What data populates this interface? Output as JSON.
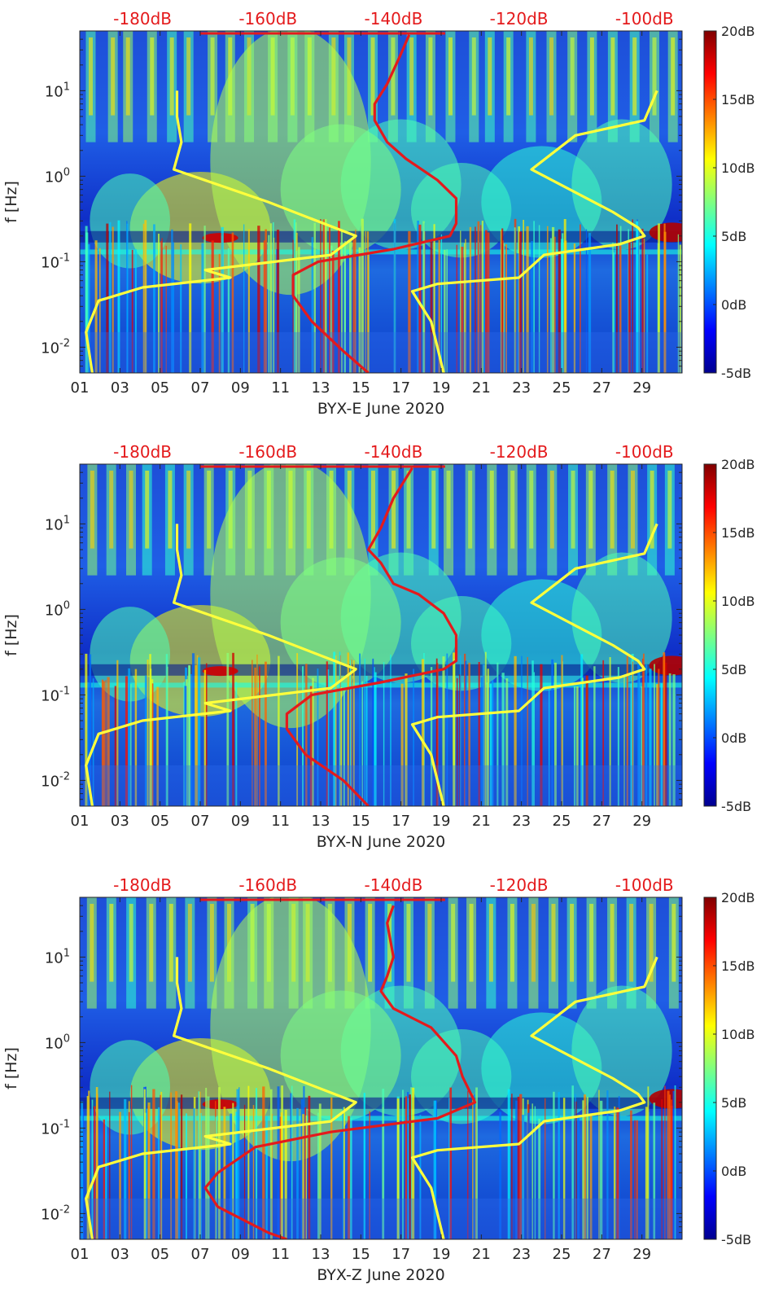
{
  "chart_data": [
    {
      "type": "heatmap",
      "title": "BYX-E June 2020",
      "xlabel": "BYX-E June 2020",
      "ylabel": "f [Hz]",
      "x_ticks": [
        "01",
        "03",
        "05",
        "07",
        "09",
        "11",
        "13",
        "15",
        "17",
        "19",
        "21",
        "23",
        "25",
        "27",
        "29"
      ],
      "x_range_days": [
        1,
        31
      ],
      "y_ticks": [
        "10^-2",
        "10^-1",
        "10^0",
        "10^1"
      ],
      "y_range_hz": [
        0.005,
        50
      ],
      "y_scale": "log",
      "colorbar_ticks": [
        "20dB",
        "15dB",
        "10dB",
        "5dB",
        "0dB",
        "-5dB"
      ],
      "color_range_db": [
        -5,
        20
      ],
      "top_scale_labels": [
        "-180dB",
        "-160dB",
        "-140dB",
        "-120dB",
        "-100dB"
      ],
      "top_scale_range_db": [
        -190,
        -94
      ],
      "series": [
        {
          "name": "yellow-noise-model",
          "color": "#ffff3c",
          "points": [
            [
              -174.5,
              10
            ],
            [
              -174.5,
              5
            ],
            [
              -173.8,
              2.5
            ],
            [
              -175,
              1.2
            ],
            [
              -160,
              0.5
            ],
            [
              -146,
              0.2
            ],
            [
              -150,
              0.12
            ],
            [
              -170,
              0.08
            ],
            [
              -166,
              0.065
            ],
            [
              -180,
              0.05
            ],
            [
              -187,
              0.035
            ],
            [
              -189,
              0.015
            ],
            [
              -188,
              0.005
            ]
          ]
        },
        {
          "name": "yellow-noise-model-right",
          "color": "#ffff3c",
          "points": [
            [
              -98,
              10
            ],
            [
              -100,
              4.5
            ],
            [
              -111,
              3
            ],
            [
              -118,
              1.2
            ],
            [
              -105,
              0.38
            ],
            [
              -101,
              0.25
            ],
            [
              -100,
              0.2
            ],
            [
              -104,
              0.16
            ],
            [
              -116,
              0.12
            ],
            [
              -120,
              0.065
            ],
            [
              -133,
              0.055
            ],
            [
              -137,
              0.045
            ],
            [
              -134,
              0.02
            ],
            [
              -132,
              0.005
            ]
          ]
        },
        {
          "name": "red-psd",
          "color": "#e41a1c",
          "points": [
            [
              -137.5,
              45
            ],
            [
              -139,
              25
            ],
            [
              -141,
              12
            ],
            [
              -143,
              7
            ],
            [
              -143,
              4.5
            ],
            [
              -141,
              2.5
            ],
            [
              -138,
              1.6
            ],
            [
              -133,
              0.9
            ],
            [
              -130,
              0.55
            ],
            [
              -130,
              0.28
            ],
            [
              -131,
              0.2
            ],
            [
              -140,
              0.14
            ],
            [
              -152,
              0.1
            ],
            [
              -156,
              0.07
            ],
            [
              -156,
              0.04
            ],
            [
              -153,
              0.02
            ],
            [
              -148,
              0.009
            ],
            [
              -144,
              0.005
            ]
          ]
        }
      ]
    },
    {
      "type": "heatmap",
      "title": "BYX-N June 2020",
      "xlabel": "BYX-N June 2020",
      "ylabel": "f [Hz]",
      "x_ticks": [
        "01",
        "03",
        "05",
        "07",
        "09",
        "11",
        "13",
        "15",
        "17",
        "19",
        "21",
        "23",
        "25",
        "27",
        "29"
      ],
      "x_range_days": [
        1,
        31
      ],
      "y_ticks": [
        "10^-2",
        "10^-1",
        "10^0",
        "10^1"
      ],
      "y_range_hz": [
        0.005,
        50
      ],
      "y_scale": "log",
      "colorbar_ticks": [
        "20dB",
        "15dB",
        "10dB",
        "5dB",
        "0dB",
        "-5dB"
      ],
      "color_range_db": [
        -5,
        20
      ],
      "top_scale_labels": [
        "-180dB",
        "-160dB",
        "-140dB",
        "-120dB",
        "-100dB"
      ],
      "top_scale_range_db": [
        -190,
        -94
      ],
      "series": [
        {
          "name": "yellow-noise-model",
          "color": "#ffff3c",
          "points": [
            [
              -174.5,
              10
            ],
            [
              -174.5,
              5
            ],
            [
              -173.8,
              2.5
            ],
            [
              -175,
              1.2
            ],
            [
              -160,
              0.5
            ],
            [
              -146,
              0.2
            ],
            [
              -150,
              0.12
            ],
            [
              -170,
              0.08
            ],
            [
              -166,
              0.065
            ],
            [
              -180,
              0.05
            ],
            [
              -187,
              0.035
            ],
            [
              -189,
              0.015
            ],
            [
              -188,
              0.005
            ]
          ]
        },
        {
          "name": "yellow-noise-model-right",
          "color": "#ffff3c",
          "points": [
            [
              -98,
              10
            ],
            [
              -100,
              4.5
            ],
            [
              -111,
              3
            ],
            [
              -118,
              1.2
            ],
            [
              -105,
              0.38
            ],
            [
              -101,
              0.25
            ],
            [
              -100,
              0.2
            ],
            [
              -104,
              0.16
            ],
            [
              -116,
              0.12
            ],
            [
              -120,
              0.065
            ],
            [
              -133,
              0.055
            ],
            [
              -137,
              0.045
            ],
            [
              -134,
              0.02
            ],
            [
              -132,
              0.005
            ]
          ]
        },
        {
          "name": "red-psd",
          "color": "#e41a1c",
          "points": [
            [
              -137,
              45
            ],
            [
              -140,
              20
            ],
            [
              -142,
              9
            ],
            [
              -144,
              5
            ],
            [
              -142,
              3.5
            ],
            [
              -140,
              2
            ],
            [
              -136,
              1.5
            ],
            [
              -132,
              0.9
            ],
            [
              -130,
              0.5
            ],
            [
              -130,
              0.25
            ],
            [
              -132,
              0.2
            ],
            [
              -142,
              0.14
            ],
            [
              -153,
              0.1
            ],
            [
              -157,
              0.06
            ],
            [
              -157,
              0.04
            ],
            [
              -154,
              0.02
            ],
            [
              -148,
              0.01
            ],
            [
              -144,
              0.005
            ]
          ]
        }
      ]
    },
    {
      "type": "heatmap",
      "title": "BYX-Z June 2020",
      "xlabel": "BYX-Z June 2020",
      "ylabel": "f [Hz]",
      "x_ticks": [
        "01",
        "03",
        "05",
        "07",
        "09",
        "11",
        "13",
        "15",
        "17",
        "19",
        "21",
        "23",
        "25",
        "27",
        "29"
      ],
      "x_range_days": [
        1,
        31
      ],
      "y_ticks": [
        "10^-2",
        "10^-1",
        "10^0",
        "10^1"
      ],
      "y_range_hz": [
        0.005,
        50
      ],
      "y_scale": "log",
      "colorbar_ticks": [
        "20dB",
        "15dB",
        "10dB",
        "5dB",
        "0dB",
        "-5dB"
      ],
      "color_range_db": [
        -5,
        20
      ],
      "top_scale_labels": [
        "-180dB",
        "-160dB",
        "-140dB",
        "-120dB",
        "-100dB"
      ],
      "top_scale_range_db": [
        -190,
        -94
      ],
      "series": [
        {
          "name": "yellow-noise-model",
          "color": "#ffff3c",
          "points": [
            [
              -174.5,
              10
            ],
            [
              -174.5,
              5
            ],
            [
              -173.8,
              2.5
            ],
            [
              -175,
              1.2
            ],
            [
              -160,
              0.5
            ],
            [
              -146,
              0.2
            ],
            [
              -150,
              0.12
            ],
            [
              -170,
              0.08
            ],
            [
              -166,
              0.065
            ],
            [
              -180,
              0.05
            ],
            [
              -187,
              0.035
            ],
            [
              -189,
              0.015
            ],
            [
              -188,
              0.005
            ]
          ]
        },
        {
          "name": "yellow-noise-model-right",
          "color": "#ffff3c",
          "points": [
            [
              -98,
              10
            ],
            [
              -100,
              4.5
            ],
            [
              -111,
              3
            ],
            [
              -118,
              1.2
            ],
            [
              -105,
              0.38
            ],
            [
              -101,
              0.25
            ],
            [
              -100,
              0.2
            ],
            [
              -104,
              0.16
            ],
            [
              -116,
              0.12
            ],
            [
              -120,
              0.065
            ],
            [
              -133,
              0.055
            ],
            [
              -137,
              0.045
            ],
            [
              -134,
              0.02
            ],
            [
              -132,
              0.005
            ]
          ]
        },
        {
          "name": "red-psd",
          "color": "#e41a1c",
          "points": [
            [
              -140,
              40
            ],
            [
              -141,
              25
            ],
            [
              -140,
              10
            ],
            [
              -141,
              6
            ],
            [
              -142,
              4
            ],
            [
              -140,
              2.5
            ],
            [
              -134,
              1.5
            ],
            [
              -130,
              0.7
            ],
            [
              -129,
              0.4
            ],
            [
              -127,
              0.2
            ],
            [
              -133,
              0.13
            ],
            [
              -150,
              0.09
            ],
            [
              -162,
              0.06
            ],
            [
              -168,
              0.03
            ],
            [
              -170,
              0.02
            ],
            [
              -168,
              0.012
            ],
            [
              -160,
              0.006
            ],
            [
              -157,
              0.005
            ]
          ]
        }
      ]
    }
  ]
}
